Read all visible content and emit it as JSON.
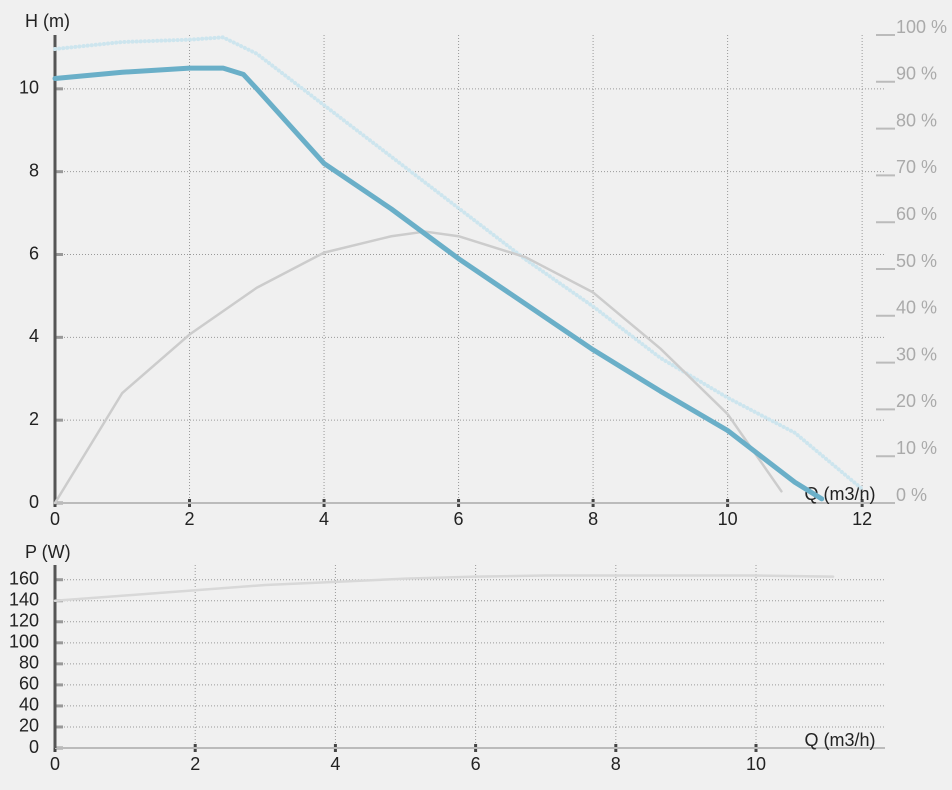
{
  "chart_data": [
    {
      "type": "line",
      "ylabel": "H (m)",
      "xlabel": "Q (m3/h)",
      "xlim": [
        0,
        12.34
      ],
      "xticks": [
        0,
        2,
        4,
        6,
        8,
        10,
        12
      ],
      "ylim": [
        0,
        11.3
      ],
      "yticks": [
        0,
        2,
        4,
        6,
        8,
        10
      ],
      "y2lim": [
        0,
        100
      ],
      "y2ticks": [
        {
          "value": 0,
          "label": "0 %"
        },
        {
          "value": 10,
          "label": "10 %"
        },
        {
          "value": 20,
          "label": "20 %"
        },
        {
          "value": 30,
          "label": "30 %"
        },
        {
          "value": 40,
          "label": "40 %"
        },
        {
          "value": 50,
          "label": "50 %"
        },
        {
          "value": 60,
          "label": "60 %"
        },
        {
          "value": 70,
          "label": "70 %"
        },
        {
          "value": 80,
          "label": "80 %"
        },
        {
          "value": 90,
          "label": "90 %"
        },
        {
          "value": 100,
          "label": "100 %"
        }
      ],
      "grid": true,
      "series": [
        {
          "color": "#cde5ee",
          "style": "dotted",
          "axis": "y2",
          "x": [
            0,
            1,
            2,
            2.5,
            3,
            4,
            5,
            6,
            7,
            8,
            9,
            10,
            11,
            12
          ],
          "values": [
            97,
            98.5,
            99,
            99.5,
            96,
            85,
            74,
            63,
            52,
            42,
            31,
            22.5,
            15,
            3
          ]
        },
        {
          "color": "#cccccc",
          "style": "solid",
          "axis": "y2",
          "x": [
            0,
            1,
            2,
            3,
            4,
            5,
            5.5,
            6,
            7,
            8,
            9,
            10,
            10.8
          ],
          "values": [
            0,
            23.5,
            36,
            46,
            53.5,
            57,
            58,
            57,
            52.5,
            45,
            33,
            19,
            2.5
          ]
        },
        {
          "color": "#6aafc8",
          "style": "thick",
          "x": [
            0,
            1,
            2,
            2.5,
            2.8,
            3,
            4,
            5,
            6,
            7,
            8,
            9,
            10,
            11,
            11.4
          ],
          "values": [
            10.25,
            10.4,
            10.5,
            10.5,
            10.35,
            10,
            8.2,
            7.1,
            5.9,
            4.8,
            3.7,
            2.7,
            1.75,
            0.5,
            0.1
          ]
        }
      ]
    },
    {
      "type": "line",
      "ylabel": "P (W)",
      "xlabel": "Q (m3/h)",
      "xlim": [
        0,
        11.84
      ],
      "xticks": [
        0,
        2,
        4,
        6,
        8,
        10
      ],
      "ylim": [
        0,
        174
      ],
      "yticks": [
        0,
        20,
        40,
        60,
        80,
        100,
        120,
        140,
        160
      ],
      "grid": true,
      "series": [
        {
          "color": "#d8d8d8",
          "style": "solid",
          "x": [
            0,
            1,
            2,
            3,
            4,
            5,
            6,
            7,
            8,
            9,
            10,
            11.1
          ],
          "values": [
            140,
            145,
            150,
            155,
            158,
            161,
            163,
            164,
            164,
            164,
            164,
            163
          ]
        }
      ]
    }
  ]
}
